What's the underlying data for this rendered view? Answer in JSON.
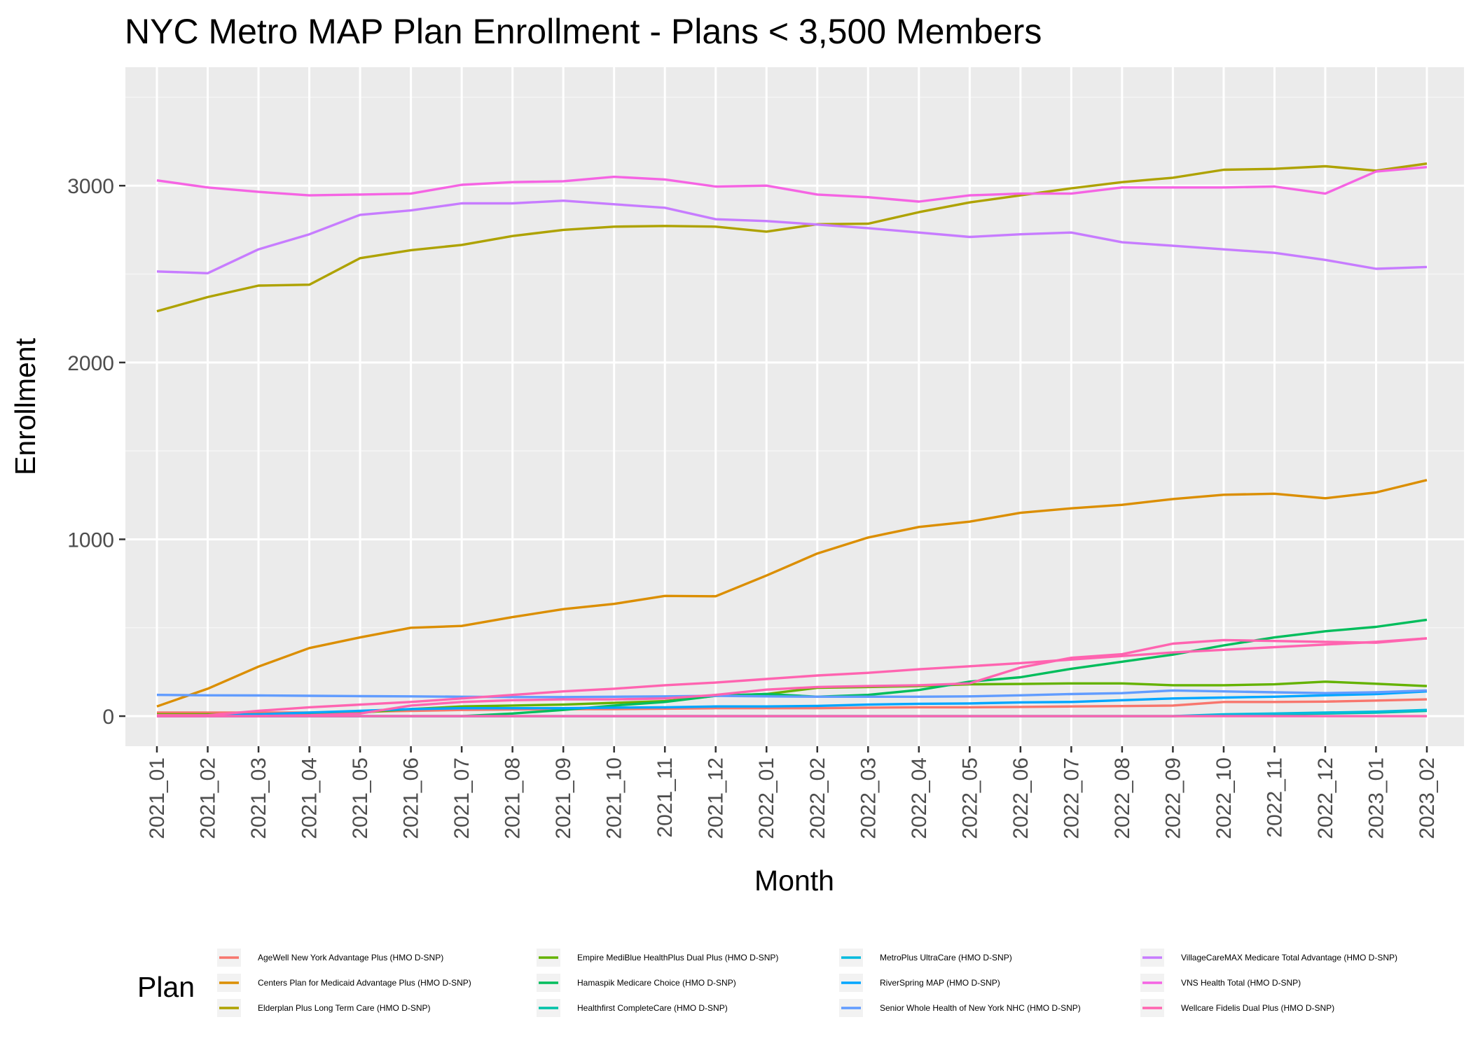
{
  "chart_data": {
    "type": "line",
    "title": "NYC Metro MAP Plan Enrollment - Plans < 3,500 Members",
    "xlabel": "Month",
    "ylabel": "Enrollment",
    "ylim": [
      -170,
      3670
    ],
    "y_ticks": [
      0,
      1000,
      2000,
      3000
    ],
    "grid": true,
    "legend_title": "Plan",
    "legend_position": "bottom",
    "x": [
      "2021_01",
      "2021_02",
      "2021_03",
      "2021_04",
      "2021_05",
      "2021_06",
      "2021_07",
      "2021_08",
      "2021_09",
      "2021_10",
      "2021_11",
      "2021_12",
      "2022_01",
      "2022_02",
      "2022_03",
      "2022_04",
      "2022_05",
      "2022_06",
      "2022_07",
      "2022_08",
      "2022_09",
      "2022_10",
      "2022_11",
      "2022_12",
      "2023_01",
      "2023_02"
    ],
    "series": [
      {
        "name": "AgeWell New York Advantage Plus (HMO D-SNP)",
        "color": "#F8766D",
        "values": [
          20,
          20,
          20,
          20,
          25,
          30,
          35,
          38,
          40,
          40,
          42,
          45,
          45,
          45,
          48,
          50,
          50,
          52,
          55,
          57,
          60,
          80,
          80,
          82,
          88,
          95
        ]
      },
      {
        "name": "Centers Plan for Medicaid Advantage Plus (HMO D-SNP)",
        "color": "#DB8E00",
        "values": [
          55,
          155,
          280,
          385,
          445,
          500,
          510,
          560,
          605,
          635,
          680,
          678,
          795,
          920,
          1010,
          1070,
          1100,
          1150,
          1175,
          1195,
          1228,
          1252,
          1258,
          1232,
          1265,
          1335
        ]
      },
      {
        "name": "Elderplan Plus Long Term Care (HMO D-SNP)",
        "color": "#AEA200",
        "values": [
          2290,
          2370,
          2435,
          2440,
          2590,
          2635,
          2665,
          2715,
          2750,
          2768,
          2772,
          2768,
          2740,
          2782,
          2785,
          2850,
          2905,
          2945,
          2985,
          3020,
          3045,
          3090,
          3095,
          3110,
          3085,
          3125
        ]
      },
      {
        "name": "Empire MediBlue HealthPlus Dual Plus (HMO D-SNP)",
        "color": "#64B200",
        "values": [
          10,
          10,
          10,
          15,
          20,
          40,
          55,
          60,
          65,
          75,
          85,
          115,
          125,
          160,
          165,
          170,
          180,
          182,
          185,
          185,
          175,
          175,
          180,
          195,
          183,
          170
        ]
      },
      {
        "name": "Hamaspik Medicare Choice (HMO D-SNP)",
        "color": "#00BD5C",
        "values": [
          0,
          0,
          0,
          0,
          0,
          0,
          0,
          15,
          35,
          60,
          80,
          115,
          125,
          110,
          120,
          148,
          195,
          220,
          268,
          308,
          348,
          400,
          445,
          480,
          505,
          545
        ]
      },
      {
        "name": "Healthfirst CompleteCare (HMO D-SNP)",
        "color": "#00C1A7",
        "values": [
          0,
          0,
          0,
          0,
          0,
          0,
          0,
          0,
          0,
          0,
          0,
          0,
          0,
          0,
          0,
          0,
          0,
          0,
          0,
          0,
          0,
          5,
          10,
          15,
          20,
          30
        ]
      },
      {
        "name": "MetroPlus UltraCare (HMO D-SNP)",
        "color": "#00BADE",
        "values": [
          0,
          0,
          0,
          0,
          0,
          0,
          0,
          0,
          0,
          0,
          0,
          0,
          0,
          0,
          0,
          0,
          0,
          0,
          0,
          0,
          0,
          10,
          15,
          20,
          25,
          35
        ]
      },
      {
        "name": "RiverSpring MAP (HMO D-SNP)",
        "color": "#00A6FF",
        "values": [
          0,
          5,
          10,
          20,
          30,
          40,
          45,
          45,
          45,
          48,
          50,
          55,
          55,
          58,
          65,
          70,
          72,
          78,
          80,
          90,
          100,
          105,
          110,
          118,
          125,
          140
        ]
      },
      {
        "name": "Senior Whole Health of New York NHC (HMO D-SNP)",
        "color": "#619CFF",
        "values": [
          120,
          118,
          117,
          115,
          113,
          112,
          110,
          108,
          108,
          110,
          112,
          115,
          112,
          110,
          110,
          110,
          112,
          118,
          125,
          130,
          145,
          140,
          135,
          130,
          135,
          145
        ]
      },
      {
        "name": "VillageCareMAX Medicare Total Advantage (HMO D-SNP)",
        "color": "#C77CFF",
        "values": [
          2515,
          2505,
          2640,
          2725,
          2835,
          2860,
          2900,
          2900,
          2915,
          2895,
          2875,
          2810,
          2800,
          2780,
          2760,
          2735,
          2710,
          2725,
          2735,
          2680,
          2660,
          2640,
          2620,
          2580,
          2530,
          2540
        ]
      },
      {
        "name": "VNS Health Total (HMO D-SNP)",
        "color": "#F564E3",
        "values": [
          3030,
          2990,
          2965,
          2945,
          2950,
          2955,
          3005,
          3020,
          3025,
          3050,
          3035,
          2995,
          3000,
          2950,
          2935,
          2910,
          2945,
          2955,
          2955,
          2990,
          2990,
          2990,
          2995,
          2955,
          3080,
          3105
        ]
      },
      {
        "name": "Wellcare Fidelis Dual Plus (HMO D-SNP)",
        "color": "#FF64B0",
        "values": [
          5,
          5,
          30,
          50,
          65,
          80,
          100,
          120,
          140,
          155,
          175,
          190,
          210,
          230,
          245,
          265,
          282,
          300,
          320,
          340,
          360,
          375,
          390,
          405,
          420,
          440
        ]
      },
      {
        "name": "",
        "color": "#FF64B0",
        "values": [
          0,
          0,
          0,
          5,
          15,
          60,
          80,
          90,
          95,
          95,
          100,
          120,
          150,
          165,
          170,
          175,
          185,
          275,
          330,
          350,
          410,
          430,
          425,
          420,
          415,
          440
        ]
      },
      {
        "name": "",
        "color": "#FF64B0",
        "values": [
          0,
          0,
          0,
          0,
          0,
          0,
          0,
          0,
          0,
          0,
          0,
          0,
          0,
          0,
          0,
          0,
          0,
          0,
          0,
          0,
          0,
          0,
          0,
          0,
          0,
          0
        ]
      }
    ]
  }
}
